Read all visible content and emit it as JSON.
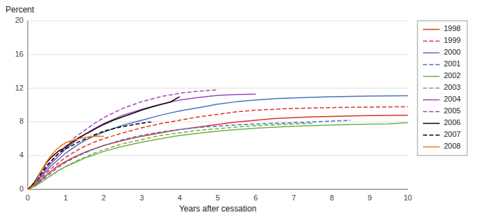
{
  "chart_data": {
    "type": "line",
    "xlabel": "Years after cessation",
    "ylabel": "Percent",
    "xlim": [
      0,
      10
    ],
    "ylim": [
      0,
      20
    ],
    "xticks": [
      0,
      1,
      2,
      3,
      4,
      5,
      6,
      7,
      8,
      9,
      10
    ],
    "yticks": [
      0,
      4,
      8,
      12,
      16,
      20
    ],
    "grid": true,
    "legend": "right",
    "series": [
      {
        "name": "1998",
        "color": "#e03020",
        "line_style": "solid",
        "x": [
          0,
          0.2,
          0.4,
          0.6,
          0.8,
          1.0,
          1.25,
          1.5,
          1.75,
          2.0,
          2.5,
          3.0,
          3.5,
          4.0,
          4.5,
          5.0,
          5.5,
          6.0,
          6.5,
          7.0,
          7.5,
          8.0,
          8.5,
          9.0,
          9.5,
          10.0
        ],
        "values": [
          0,
          0.5,
          1.3,
          2.1,
          2.8,
          3.3,
          3.9,
          4.4,
          4.8,
          5.2,
          5.8,
          6.3,
          6.7,
          7.1,
          7.4,
          7.7,
          8.0,
          8.2,
          8.4,
          8.5,
          8.6,
          8.65,
          8.7,
          8.75,
          8.77,
          8.8
        ]
      },
      {
        "name": "1999",
        "color": "#e03020",
        "line_style": "dashed",
        "x": [
          0,
          0.2,
          0.4,
          0.6,
          0.8,
          1.0,
          1.25,
          1.5,
          1.75,
          2.0,
          2.5,
          3.0,
          3.5,
          4.0,
          4.5,
          5.0,
          5.5,
          6.0,
          6.5,
          7.0,
          7.5,
          8.0,
          8.5,
          9.0,
          9.5,
          10.0
        ],
        "values": [
          0,
          0.6,
          1.5,
          2.4,
          3.1,
          3.8,
          4.5,
          5.1,
          5.6,
          6.0,
          6.7,
          7.3,
          7.8,
          8.2,
          8.6,
          8.9,
          9.2,
          9.4,
          9.5,
          9.6,
          9.65,
          9.7,
          9.73,
          9.76,
          9.78,
          9.8
        ]
      },
      {
        "name": "2000",
        "color": "#4472c4",
        "line_style": "solid",
        "x": [
          0,
          0.2,
          0.4,
          0.6,
          0.8,
          1.0,
          1.25,
          1.5,
          1.75,
          2.0,
          2.5,
          3.0,
          3.5,
          4.0,
          4.5,
          5.0,
          5.5,
          6.0,
          6.5,
          7.0,
          7.5,
          8.0,
          8.5,
          9.0,
          9.5,
          10.0
        ],
        "values": [
          0,
          0.7,
          1.7,
          2.7,
          3.5,
          4.3,
          5.1,
          5.8,
          6.3,
          6.8,
          7.6,
          8.2,
          8.8,
          9.3,
          9.7,
          10.1,
          10.4,
          10.6,
          10.75,
          10.85,
          10.93,
          10.98,
          11.02,
          11.06,
          11.09,
          11.1
        ]
      },
      {
        "name": "2001",
        "color": "#4472c4",
        "line_style": "dashed",
        "x": [
          0,
          0.2,
          0.4,
          0.6,
          0.8,
          1.0,
          1.25,
          1.5,
          1.75,
          2.0,
          2.5,
          3.0,
          3.5,
          4.0,
          4.5,
          5.0,
          5.5,
          6.0,
          6.5,
          7.0,
          7.5,
          8.0,
          8.5
        ],
        "values": [
          0,
          0.5,
          1.2,
          1.9,
          2.6,
          3.2,
          3.8,
          4.3,
          4.8,
          5.2,
          5.9,
          6.4,
          6.8,
          7.1,
          7.35,
          7.5,
          7.65,
          7.75,
          7.83,
          7.9,
          8.0,
          8.1,
          8.2
        ]
      },
      {
        "name": "2002",
        "color": "#70ad47",
        "line_style": "solid",
        "x": [
          0,
          0.2,
          0.4,
          0.6,
          0.8,
          1.0,
          1.25,
          1.5,
          1.75,
          2.0,
          2.5,
          3.0,
          3.5,
          4.0,
          4.5,
          5.0,
          5.5,
          6.0,
          6.5,
          7.0,
          7.5,
          8.0,
          8.5,
          9.0,
          9.5,
          10.0
        ],
        "values": [
          0,
          0.4,
          1.0,
          1.6,
          2.2,
          2.7,
          3.2,
          3.7,
          4.1,
          4.5,
          5.1,
          5.6,
          6.0,
          6.4,
          6.65,
          6.9,
          7.1,
          7.25,
          7.38,
          7.48,
          7.56,
          7.63,
          7.69,
          7.74,
          7.77,
          7.9
        ]
      },
      {
        "name": "2003",
        "color": "#70ad47",
        "line_style": "dashed",
        "x": [
          0,
          0.2,
          0.4,
          0.6,
          0.8,
          1.0,
          1.25,
          1.5,
          1.75,
          2.0,
          2.5,
          3.0,
          3.5,
          4.0,
          4.5,
          5.0,
          5.5,
          6.0,
          6.5,
          7.0,
          7.5
        ],
        "values": [
          0,
          0.4,
          1.0,
          1.6,
          2.2,
          2.7,
          3.3,
          3.8,
          4.3,
          4.7,
          5.4,
          5.9,
          6.4,
          6.7,
          7.0,
          7.2,
          7.4,
          7.55,
          7.65,
          7.75,
          7.82
        ]
      },
      {
        "name": "2004",
        "color": "#9e44b8",
        "line_style": "solid",
        "x": [
          0,
          0.2,
          0.4,
          0.6,
          0.8,
          1.0,
          1.25,
          1.5,
          1.75,
          2.0,
          2.5,
          3.0,
          3.5,
          4.0,
          4.5,
          5.0,
          5.5,
          6.0
        ],
        "values": [
          0,
          0.8,
          1.9,
          3.0,
          3.9,
          4.8,
          5.7,
          6.5,
          7.2,
          7.8,
          8.8,
          9.5,
          10.1,
          10.6,
          10.9,
          11.15,
          11.25,
          11.3
        ]
      },
      {
        "name": "2005",
        "color": "#9e44b8",
        "line_style": "dashed",
        "x": [
          0,
          0.2,
          0.4,
          0.6,
          0.8,
          1.0,
          1.25,
          1.5,
          1.75,
          2.0,
          2.5,
          3.0,
          3.5,
          4.0,
          4.5,
          5.0
        ],
        "values": [
          0,
          0.9,
          2.1,
          3.2,
          4.2,
          5.1,
          6.2,
          7.0,
          7.8,
          8.5,
          9.6,
          10.4,
          11.0,
          11.4,
          11.65,
          11.8
        ]
      },
      {
        "name": "2006",
        "color": "#000000",
        "line_style": "solid",
        "x": [
          0,
          0.08,
          0.17,
          0.25,
          0.33,
          0.42,
          0.5,
          0.58,
          0.67,
          0.75,
          0.83,
          0.92,
          1.0,
          1.08,
          1.17,
          1.25,
          1.33,
          1.5,
          1.67,
          1.83,
          2.0,
          2.25,
          2.5,
          2.75,
          3.0,
          3.25,
          3.5,
          3.75,
          4.0
        ],
        "values": [
          0,
          0.3,
          0.8,
          1.4,
          2.0,
          2.6,
          3.2,
          3.6,
          4.0,
          4.3,
          4.6,
          4.8,
          5.0,
          5.3,
          5.6,
          5.85,
          6.1,
          6.5,
          6.9,
          7.3,
          7.7,
          8.2,
          8.6,
          9.0,
          9.4,
          9.75,
          10.05,
          10.35,
          11.0
        ]
      },
      {
        "name": "2007",
        "color": "#000000",
        "line_style": "dashed",
        "x": [
          0,
          0.08,
          0.17,
          0.25,
          0.33,
          0.42,
          0.5,
          0.58,
          0.67,
          0.75,
          0.83,
          0.92,
          1.0,
          1.17,
          1.33,
          1.5,
          1.67,
          1.83,
          2.0,
          2.25,
          2.5,
          2.75,
          3.0,
          3.25
        ],
        "values": [
          0,
          0.2,
          0.6,
          1.2,
          1.7,
          2.3,
          2.8,
          3.2,
          3.6,
          4.0,
          4.3,
          4.6,
          4.8,
          5.2,
          5.6,
          5.95,
          6.3,
          6.6,
          6.9,
          7.2,
          7.45,
          7.65,
          7.85,
          8.0
        ]
      },
      {
        "name": "2008",
        "color": "#f07800",
        "line_style": "solid",
        "x": [
          0,
          0.08,
          0.17,
          0.25,
          0.33,
          0.42,
          0.5,
          0.58,
          0.67,
          0.75,
          0.83,
          0.92,
          1.0,
          1.17,
          1.33,
          1.5,
          1.67,
          1.83,
          2.0
        ],
        "values": [
          0,
          0.2,
          0.6,
          1.3,
          2.0,
          2.7,
          3.3,
          3.8,
          4.3,
          4.7,
          5.0,
          5.3,
          5.55,
          5.8,
          6.0,
          6.15,
          6.25,
          6.3,
          6.3
        ]
      }
    ]
  }
}
